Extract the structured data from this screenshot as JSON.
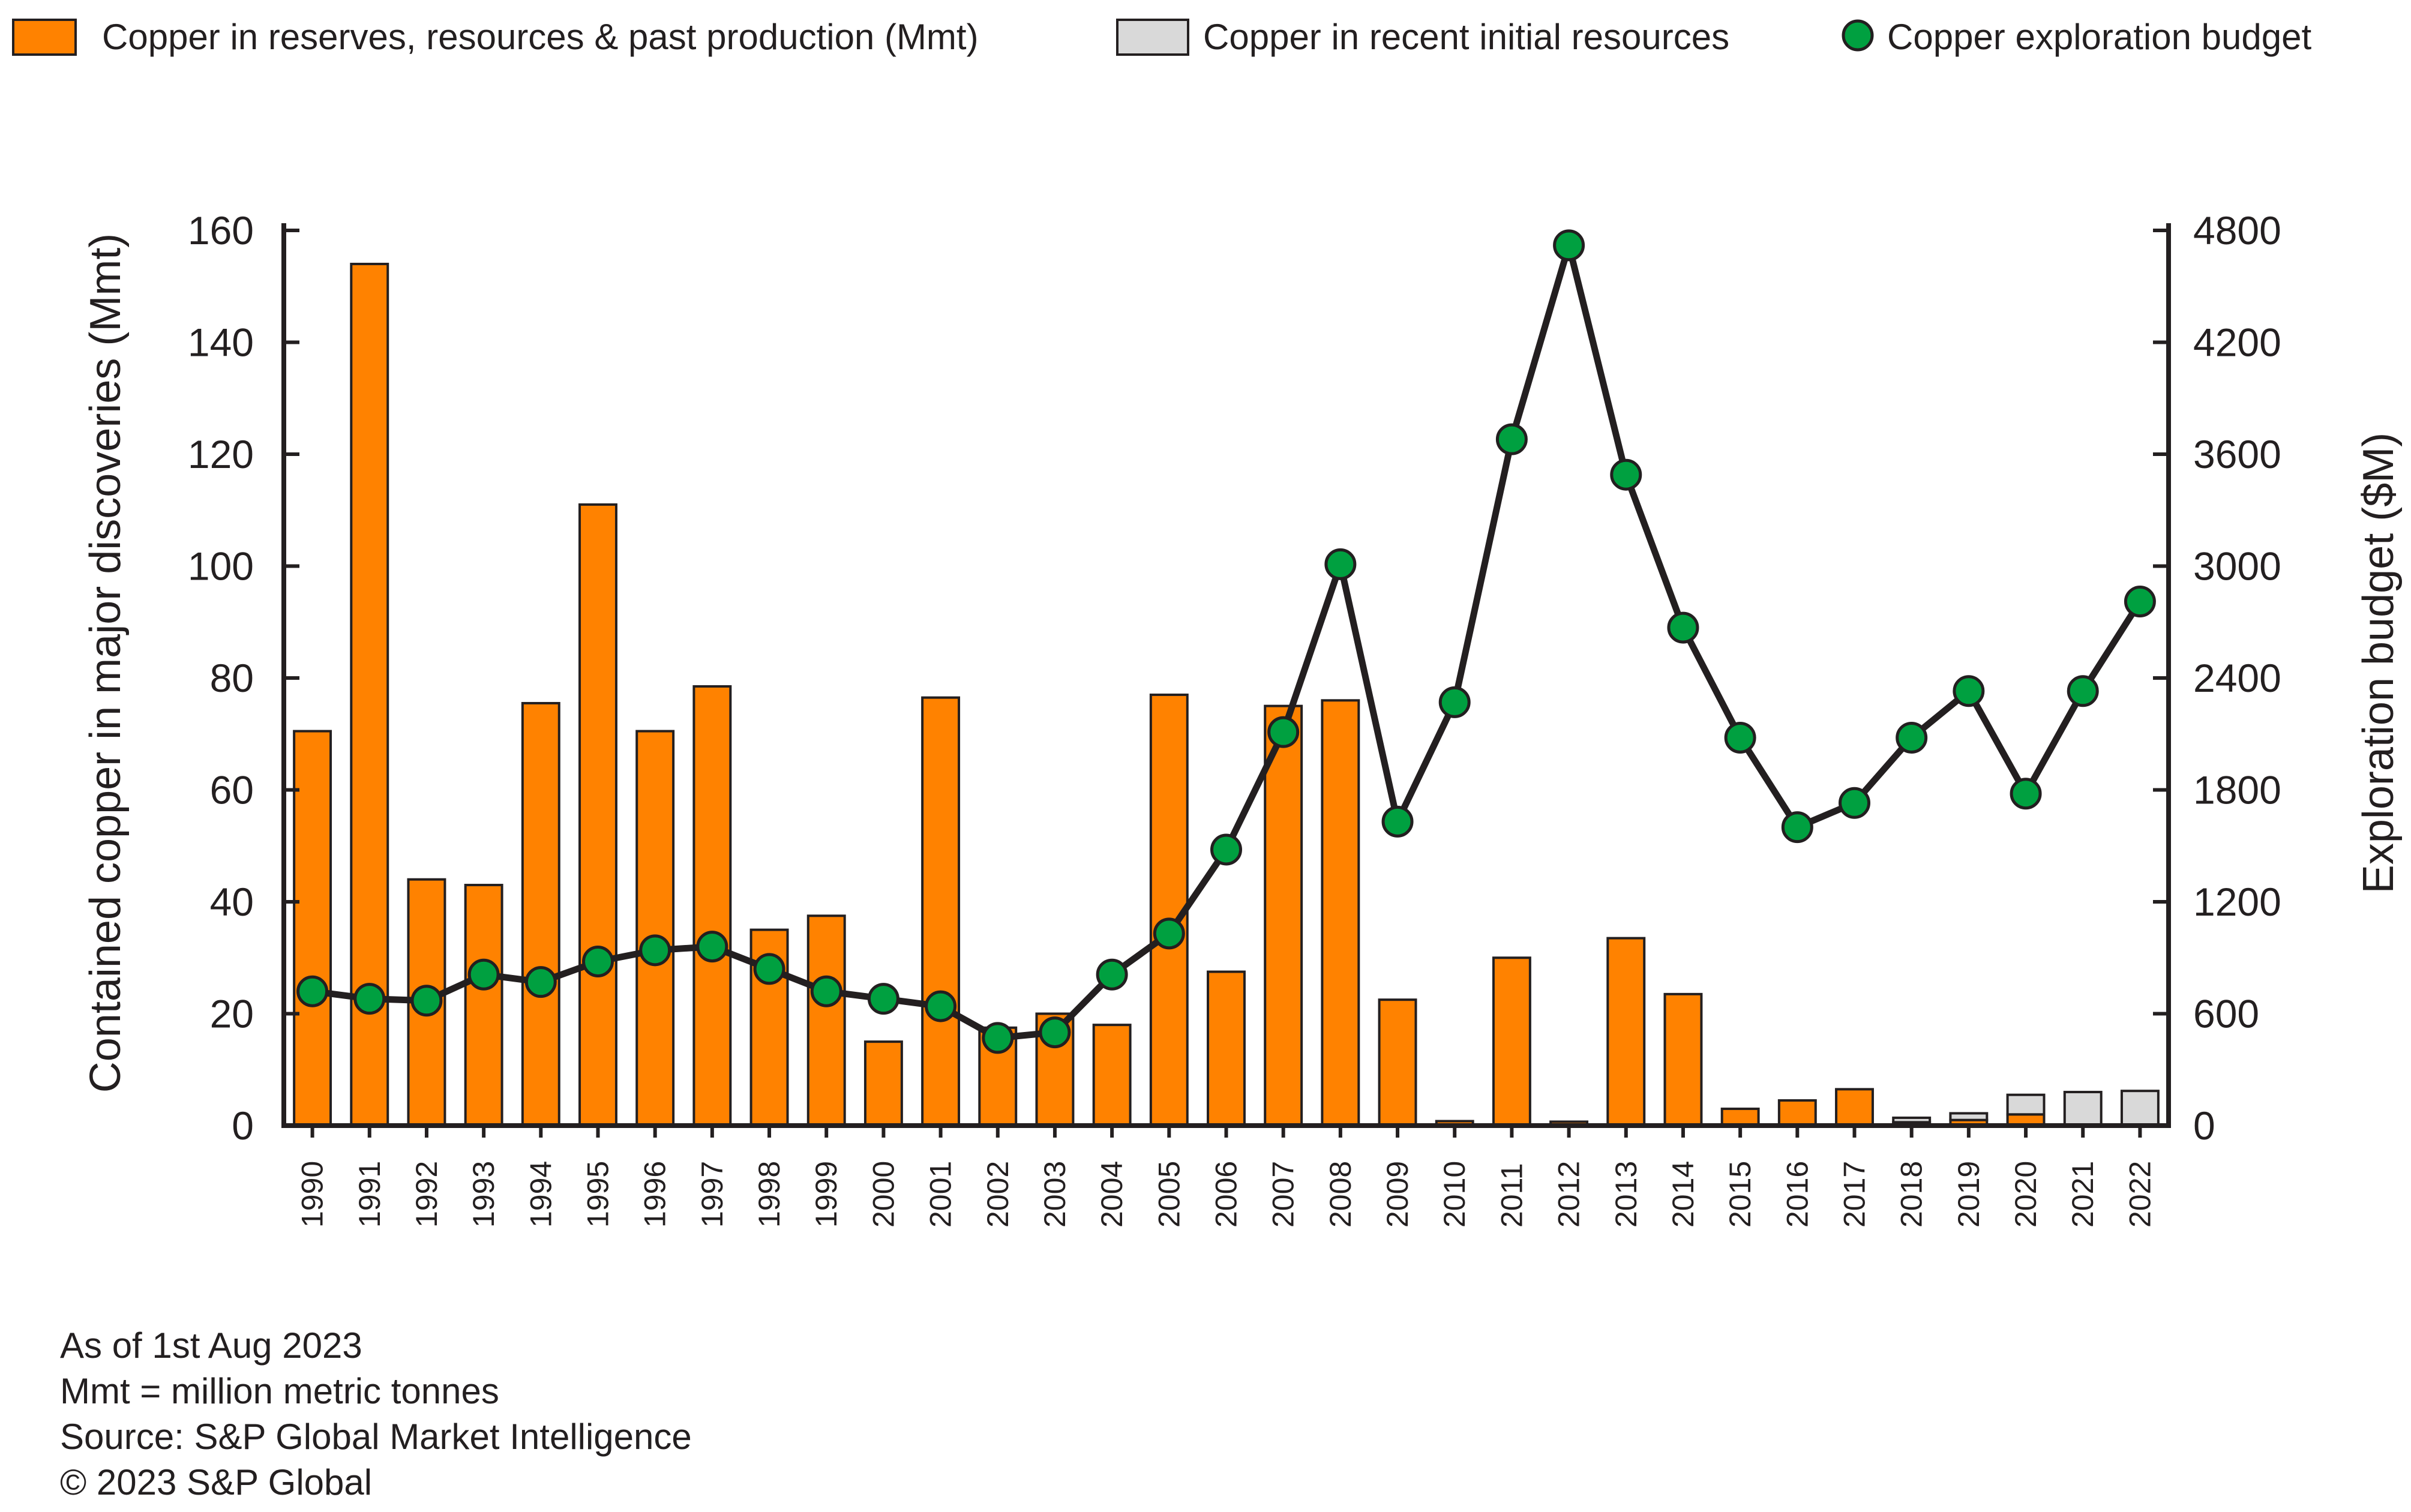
{
  "chart_data": {
    "type": "bar",
    "categories": [
      "1990",
      "1991",
      "1992",
      "1993",
      "1994",
      "1995",
      "1996",
      "1997",
      "1998",
      "1999",
      "2000",
      "2001",
      "2002",
      "2003",
      "2004",
      "2005",
      "2006",
      "2007",
      "2008",
      "2009",
      "2010",
      "2011",
      "2012",
      "2013",
      "2014",
      "2015",
      "2016",
      "2017",
      "2018",
      "2019",
      "2020",
      "2021",
      "2022"
    ],
    "series": [
      {
        "name": "Copper in reserves, resources & past production (Mmt)",
        "type": "bar",
        "axis": "left",
        "color": "#ff8200",
        "values": [
          70.5,
          154,
          44,
          43,
          75.5,
          111,
          70.5,
          78.5,
          35,
          37.5,
          15,
          76.5,
          17.5,
          20,
          18,
          77,
          27.5,
          75,
          76,
          22.5,
          0.8,
          30,
          0.7,
          33.5,
          23.5,
          3,
          4.5,
          6.5,
          0.6,
          1,
          2,
          0,
          0
        ]
      },
      {
        "name": "Copper in recent initial resources",
        "type": "bar",
        "axis": "left",
        "color": "#d9d9d9",
        "values": [
          0,
          0,
          0,
          0,
          0,
          0,
          0,
          0,
          0,
          0,
          0,
          0,
          0,
          0,
          0,
          0,
          0,
          0,
          0,
          0,
          0,
          0,
          0,
          0,
          0,
          0,
          0,
          0,
          0.8,
          1.2,
          3.5,
          6,
          6.2
        ]
      },
      {
        "name": "Copper exploration budget",
        "type": "line",
        "axis": "right",
        "color": "#00a040",
        "values": [
          720,
          680,
          670,
          810,
          770,
          880,
          940,
          960,
          840,
          720,
          680,
          640,
          470,
          500,
          810,
          1030,
          1480,
          2110,
          3010,
          1630,
          2270,
          3680,
          4720,
          3490,
          2670,
          2080,
          1600,
          1730,
          2080,
          2330,
          1780,
          2330,
          2810
        ]
      }
    ],
    "xlabel": "",
    "ylabel": "Contained copper in major discoveries (Mmt)",
    "y2label": "Exploration budget ($M)",
    "ylim": [
      0,
      160
    ],
    "y2lim": [
      0,
      4800
    ],
    "yticks": [
      "0",
      "20",
      "40",
      "60",
      "80",
      "100",
      "120",
      "140",
      "160"
    ],
    "y2ticks": [
      "0",
      "600",
      "1200",
      "1800",
      "2400",
      "3000",
      "3600",
      "4200",
      "4800"
    ],
    "legend_position": "top",
    "grid": false
  },
  "notes": {
    "date": "As of 1st Aug 2023",
    "units": "Mmt = million metric tonnes",
    "source": "Source: S&P Global Market Intelligence",
    "copyright": "© 2023 S&P Global"
  }
}
